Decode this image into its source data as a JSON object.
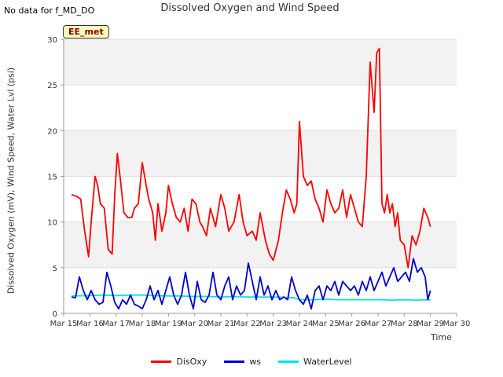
{
  "no_data_note": "No data for f_MD_DO",
  "site_badge": "EE_met",
  "chart_data": {
    "type": "line",
    "title": "Dissolved Oxygen and Wind Speed",
    "xlabel": "Time",
    "ylabel": "Dissolved Oxygen (mV), Wind Speed, Water Lvl (psi)",
    "ylim": [
      0,
      30
    ],
    "xlim": [
      "Mar 15",
      "Mar 30"
    ],
    "x_ticks": [
      "Mar 15",
      "Mar 16",
      "Mar 17",
      "Mar 18",
      "Mar 19",
      "Mar 20",
      "Mar 21",
      "Mar 22",
      "Mar 23",
      "Mar 24",
      "Mar 25",
      "Mar 26",
      "Mar 27",
      "Mar 28",
      "Mar 29",
      "Mar 30"
    ],
    "y_ticks": [
      0,
      5,
      10,
      15,
      20,
      25,
      30
    ],
    "grid": true,
    "legend_position": "bottom",
    "series": [
      {
        "name": "DisOxy",
        "color": "#ff0000",
        "x": [
          15.3,
          15.5,
          15.65,
          15.8,
          15.95,
          16.05,
          16.2,
          16.3,
          16.4,
          16.55,
          16.7,
          16.85,
          16.95,
          17.05,
          17.15,
          17.3,
          17.45,
          17.6,
          17.7,
          17.85,
          18.0,
          18.15,
          18.25,
          18.4,
          18.5,
          18.6,
          18.75,
          18.9,
          19.0,
          19.15,
          19.3,
          19.45,
          19.6,
          19.75,
          19.9,
          20.05,
          20.2,
          20.3,
          20.45,
          20.6,
          20.8,
          21.0,
          21.15,
          21.3,
          21.5,
          21.7,
          21.85,
          22.0,
          22.2,
          22.35,
          22.5,
          22.7,
          22.85,
          23.0,
          23.2,
          23.35,
          23.5,
          23.65,
          23.8,
          23.9,
          24.0,
          24.15,
          24.3,
          24.45,
          24.6,
          24.75,
          24.9,
          25.05,
          25.2,
          25.35,
          25.5,
          25.65,
          25.8,
          25.95,
          26.1,
          26.25,
          26.4,
          26.55,
          26.7,
          26.85,
          26.95,
          27.05,
          27.15,
          27.25,
          27.35,
          27.45,
          27.55,
          27.65,
          27.75,
          27.85,
          28.0,
          28.15,
          28.3,
          28.45,
          28.6,
          28.75,
          28.9,
          29.0
        ],
        "values": [
          13.0,
          12.8,
          12.5,
          9.0,
          6.2,
          10.0,
          15.0,
          14.0,
          12.0,
          11.5,
          7.0,
          6.5,
          13.0,
          17.5,
          15.0,
          11.0,
          10.5,
          10.5,
          11.5,
          12.0,
          16.5,
          14.0,
          12.5,
          11.0,
          8.0,
          12.0,
          9.0,
          11.0,
          14.0,
          12.0,
          10.5,
          10.0,
          11.5,
          9.0,
          12.5,
          12.0,
          10.0,
          9.5,
          8.5,
          11.5,
          9.5,
          13.0,
          11.5,
          9.0,
          10.0,
          13.0,
          10.0,
          8.5,
          9.0,
          8.0,
          11.0,
          8.0,
          6.5,
          5.8,
          8.0,
          11.0,
          13.5,
          12.5,
          11.0,
          12.0,
          21.0,
          15.0,
          14.0,
          14.5,
          12.5,
          11.5,
          10.0,
          13.5,
          12.0,
          11.0,
          11.5,
          13.5,
          10.5,
          13.0,
          11.5,
          10.0,
          9.5,
          15.0,
          27.5,
          22.0,
          28.5,
          29.0,
          12.0,
          11.0,
          13.0,
          11.0,
          12.0,
          9.5,
          11.0,
          8.0,
          7.5,
          5.0,
          8.5,
          7.5,
          9.0,
          11.5,
          10.5,
          9.5
        ]
      },
      {
        "name": "ws",
        "color": "#0000cc",
        "x": [
          15.3,
          15.45,
          15.6,
          15.75,
          15.9,
          16.05,
          16.2,
          16.35,
          16.5,
          16.65,
          16.8,
          16.95,
          17.1,
          17.25,
          17.4,
          17.55,
          17.7,
          17.85,
          18.0,
          18.15,
          18.3,
          18.45,
          18.6,
          18.75,
          18.9,
          19.05,
          19.2,
          19.35,
          19.5,
          19.65,
          19.8,
          19.95,
          20.1,
          20.25,
          20.4,
          20.55,
          20.7,
          20.85,
          21.0,
          21.15,
          21.3,
          21.45,
          21.6,
          21.75,
          21.9,
          22.05,
          22.2,
          22.35,
          22.5,
          22.65,
          22.8,
          22.95,
          23.1,
          23.25,
          23.4,
          23.55,
          23.7,
          23.85,
          24.0,
          24.15,
          24.3,
          24.45,
          24.6,
          24.75,
          24.9,
          25.05,
          25.2,
          25.35,
          25.5,
          25.65,
          25.8,
          25.95,
          26.1,
          26.25,
          26.4,
          26.55,
          26.7,
          26.85,
          27.0,
          27.15,
          27.3,
          27.45,
          27.6,
          27.75,
          27.9,
          28.05,
          28.2,
          28.35,
          28.5,
          28.65,
          28.8,
          28.9,
          29.0
        ],
        "values": [
          1.8,
          1.7,
          4.0,
          2.5,
          1.5,
          2.5,
          1.5,
          1.0,
          1.2,
          4.5,
          3.0,
          1.2,
          0.5,
          1.5,
          1.0,
          2.0,
          1.0,
          0.8,
          0.5,
          1.5,
          3.0,
          1.5,
          2.5,
          1.0,
          2.5,
          4.0,
          2.0,
          1.0,
          2.0,
          4.5,
          2.0,
          0.5,
          3.5,
          1.5,
          1.2,
          2.0,
          4.5,
          2.0,
          1.5,
          3.0,
          4.0,
          1.5,
          3.0,
          2.0,
          2.5,
          5.5,
          3.5,
          1.5,
          4.0,
          2.0,
          3.0,
          1.5,
          2.5,
          1.5,
          1.8,
          1.5,
          4.0,
          2.5,
          1.5,
          1.0,
          2.0,
          0.5,
          2.5,
          3.0,
          1.5,
          3.0,
          2.5,
          3.5,
          2.0,
          3.5,
          3.0,
          2.5,
          3.0,
          2.0,
          3.5,
          2.5,
          4.0,
          2.5,
          3.5,
          4.5,
          3.0,
          4.0,
          5.0,
          3.5,
          4.0,
          4.5,
          3.5,
          6.0,
          4.5,
          5.0,
          4.0,
          1.5,
          2.5
        ]
      },
      {
        "name": "WaterLevel",
        "color": "#00e5e5",
        "x": [
          15.3,
          16.0,
          16.5,
          17.0,
          17.5,
          18.0,
          18.5,
          19.0,
          19.5,
          20.0,
          20.5,
          21.0,
          21.5,
          22.0,
          22.5,
          23.0,
          23.5,
          23.8,
          24.0,
          24.5,
          25.0,
          25.5,
          26.0,
          26.5,
          27.0,
          27.5,
          28.0,
          28.5,
          29.0
        ],
        "values": [
          1.9,
          1.95,
          2.0,
          1.95,
          2.0,
          2.0,
          1.95,
          1.9,
          1.9,
          1.85,
          1.85,
          1.8,
          1.85,
          1.8,
          1.8,
          1.8,
          1.75,
          1.7,
          1.5,
          1.5,
          1.55,
          1.5,
          1.5,
          1.5,
          1.5,
          1.45,
          1.5,
          1.45,
          1.5
        ]
      }
    ]
  }
}
